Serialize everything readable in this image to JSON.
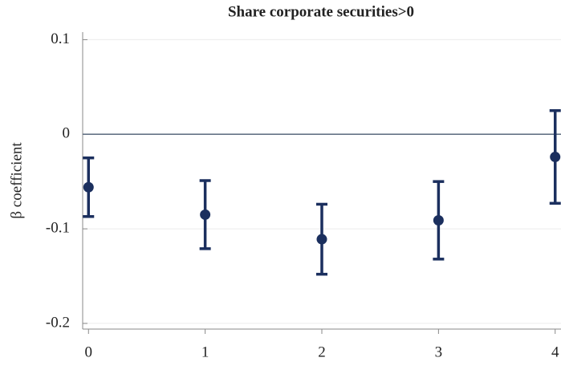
{
  "chart_data": {
    "type": "errorbar",
    "title": "Share corporate securities>0",
    "ylabel": "β coefficient",
    "x": [
      0,
      1,
      2,
      3,
      4
    ],
    "values": [
      -0.056,
      -0.085,
      -0.111,
      -0.091,
      -0.024
    ],
    "errors": [
      0.031,
      0.036,
      0.037,
      0.041,
      0.049
    ],
    "color": "#1b2f5e",
    "reference_line": 0,
    "reference_color": "#5a6a7e",
    "xlim": [
      -0.05,
      4.05
    ],
    "xticks": [
      0,
      1,
      2,
      3,
      4
    ],
    "ylim": [
      -0.206,
      0.108
    ],
    "yticks": [
      0.1,
      0,
      -0.1,
      -0.2
    ],
    "grid": true
  }
}
